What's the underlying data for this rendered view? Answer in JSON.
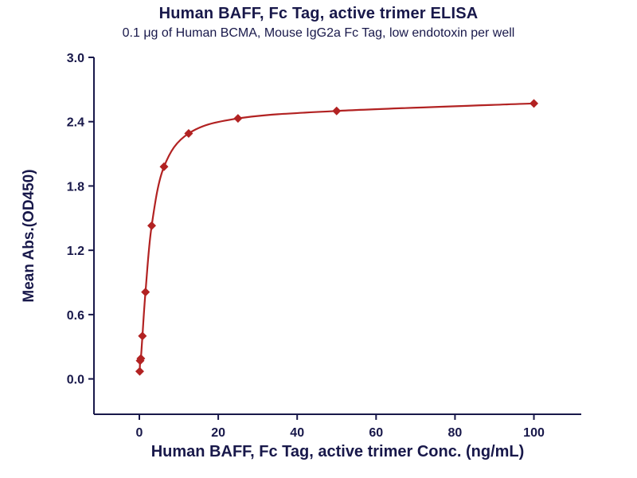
{
  "colors": {
    "background": "#ffffff",
    "text": "#18184a",
    "axis": "#18184a",
    "curve": "#b22222"
  },
  "chart_data": {
    "type": "scatter",
    "title": "Human BAFF, Fc Tag, active trimer ELISA",
    "subtitle": "0.1 μg of Human BCMA, Mouse IgG2a Fc Tag, low endotoxin per well",
    "xlabel": "Human BAFF, Fc Tag, active trimer Conc. (ng/mL)",
    "ylabel": "Mean Abs.(OD450)",
    "xlim": [
      -11.5,
      112
    ],
    "ylim": [
      -0.33,
      3.0
    ],
    "xticks": [
      0,
      20,
      40,
      60,
      80,
      100
    ],
    "yticks": [
      0.0,
      0.6,
      1.2,
      1.8,
      2.4,
      3.0
    ],
    "grid": false,
    "legend": "none",
    "series": [
      {
        "name": "Human BAFF, Fc Tag, active trimer",
        "marker": "diamond",
        "color": "#b22222",
        "fit": "4PL sigmoidal curve",
        "points": [
          {
            "x": 0.1,
            "y": 0.07
          },
          {
            "x": 0.2,
            "y": 0.17
          },
          {
            "x": 0.39,
            "y": 0.19
          },
          {
            "x": 0.78,
            "y": 0.4
          },
          {
            "x": 1.56,
            "y": 0.81
          },
          {
            "x": 3.13,
            "y": 1.43
          },
          {
            "x": 6.25,
            "y": 1.98
          },
          {
            "x": 12.5,
            "y": 2.29
          },
          {
            "x": 25,
            "y": 2.43
          },
          {
            "x": 50,
            "y": 2.5
          },
          {
            "x": 100,
            "y": 2.57
          }
        ]
      }
    ]
  }
}
